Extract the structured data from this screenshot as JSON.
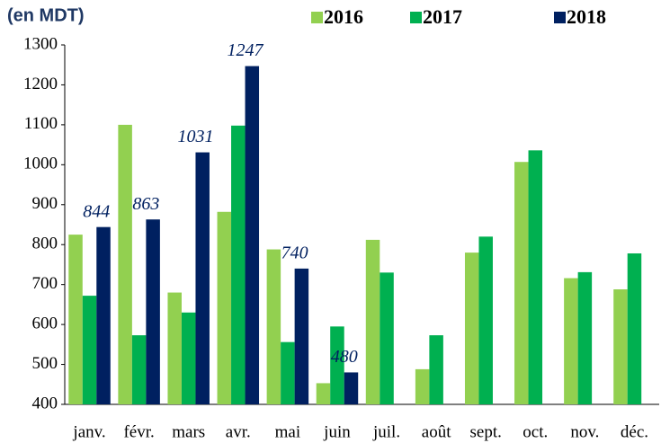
{
  "chart_data": {
    "type": "bar",
    "title": "(en MDT)",
    "categories": [
      "janv.",
      "févr.",
      "mars",
      "avr.",
      "mai",
      "juin",
      "juil.",
      "août",
      "sept.",
      "oct.",
      "nov.",
      "déc."
    ],
    "series": [
      {
        "name": "2016",
        "color": "#92d050",
        "values": [
          825,
          1100,
          680,
          882,
          788,
          453,
          812,
          488,
          780,
          1007,
          716,
          688
        ]
      },
      {
        "name": "2017",
        "color": "#00b050",
        "values": [
          672,
          573,
          630,
          1098,
          556,
          595,
          730,
          573,
          820,
          1036,
          731,
          778
        ]
      },
      {
        "name": "2018",
        "color": "#002060",
        "values": [
          844,
          863,
          1031,
          1247,
          740,
          480,
          null,
          null,
          null,
          null,
          null,
          null
        ],
        "show_values": true
      }
    ],
    "ylim": [
      400,
      1300
    ],
    "yticks": [
      400,
      500,
      600,
      700,
      800,
      900,
      1000,
      1100,
      1200,
      1300
    ]
  }
}
